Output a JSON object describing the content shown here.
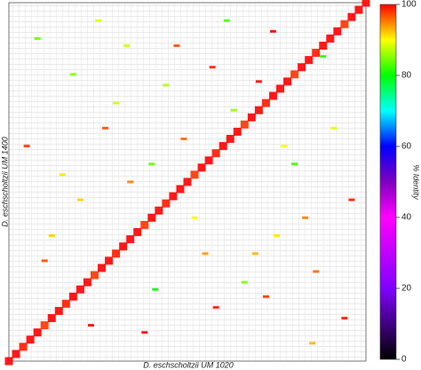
{
  "chart_data": {
    "type": "dotplot",
    "x_label": "D. eschscholtzii UM 1020",
    "y_label": "D. eschscholtzii UM 1400",
    "colorbar_label": "% Identity",
    "clim": [
      0,
      100
    ],
    "cticks": [
      0,
      20,
      40,
      60,
      80,
      100
    ],
    "xlim": [
      0,
      100
    ],
    "ylim": [
      0,
      100
    ],
    "series": [
      {
        "name": "diagonal",
        "x": [
          0,
          2,
          4,
          6,
          8,
          10,
          12,
          14,
          16,
          18,
          20,
          22,
          24,
          26,
          28,
          30,
          32,
          34,
          36,
          38,
          40,
          42,
          44,
          46,
          48,
          50,
          52,
          54,
          56,
          58,
          60,
          62,
          64,
          66,
          68,
          70,
          72,
          74,
          76,
          78,
          80,
          82,
          84,
          86,
          88,
          90,
          92,
          94,
          96,
          98,
          100
        ],
        "y": [
          0,
          2,
          4,
          6,
          8,
          10,
          12,
          14,
          16,
          18,
          20,
          22,
          24,
          26,
          28,
          30,
          32,
          34,
          36,
          38,
          40,
          42,
          44,
          46,
          48,
          50,
          52,
          54,
          56,
          58,
          60,
          62,
          64,
          66,
          68,
          70,
          72,
          74,
          76,
          78,
          80,
          82,
          84,
          86,
          88,
          90,
          92,
          94,
          96,
          98,
          100
        ],
        "identity": [
          100,
          100,
          99,
          100,
          100,
          98,
          100,
          100,
          99,
          100,
          100,
          100,
          98,
          100,
          100,
          99,
          100,
          100,
          100,
          98,
          100,
          100,
          99,
          100,
          100,
          100,
          98,
          100,
          100,
          99,
          100,
          100,
          100,
          98,
          100,
          100,
          99,
          100,
          100,
          100,
          98,
          100,
          100,
          99,
          100,
          100,
          100,
          98,
          100,
          100,
          100
        ]
      },
      {
        "name": "matches",
        "x": [
          5,
          12,
          18,
          23,
          30,
          34,
          41,
          47,
          52,
          58,
          63,
          69,
          74,
          80,
          86,
          91,
          96,
          8,
          15,
          27,
          38,
          44,
          55,
          61,
          72,
          77,
          83,
          88,
          94,
          20,
          33,
          49,
          66,
          70,
          85,
          10,
          25,
          40,
          57,
          75
        ],
        "y": [
          60,
          35,
          80,
          10,
          72,
          50,
          20,
          88,
          40,
          15,
          70,
          30,
          92,
          55,
          25,
          65,
          45,
          90,
          52,
          65,
          8,
          77,
          30,
          95,
          18,
          60,
          40,
          85,
          12,
          45,
          88,
          62,
          22,
          78,
          5,
          28,
          95,
          55,
          82,
          35
        ],
        "identity": [
          98,
          92,
          85,
          100,
          88,
          95,
          80,
          97,
          90,
          99,
          86,
          93,
          100,
          82,
          96,
          89,
          99,
          84,
          91,
          97,
          100,
          87,
          94,
          83,
          98,
          90,
          95,
          81,
          99,
          92,
          88,
          96,
          85,
          100,
          93,
          97,
          89,
          84,
          99,
          91
        ]
      }
    ]
  }
}
